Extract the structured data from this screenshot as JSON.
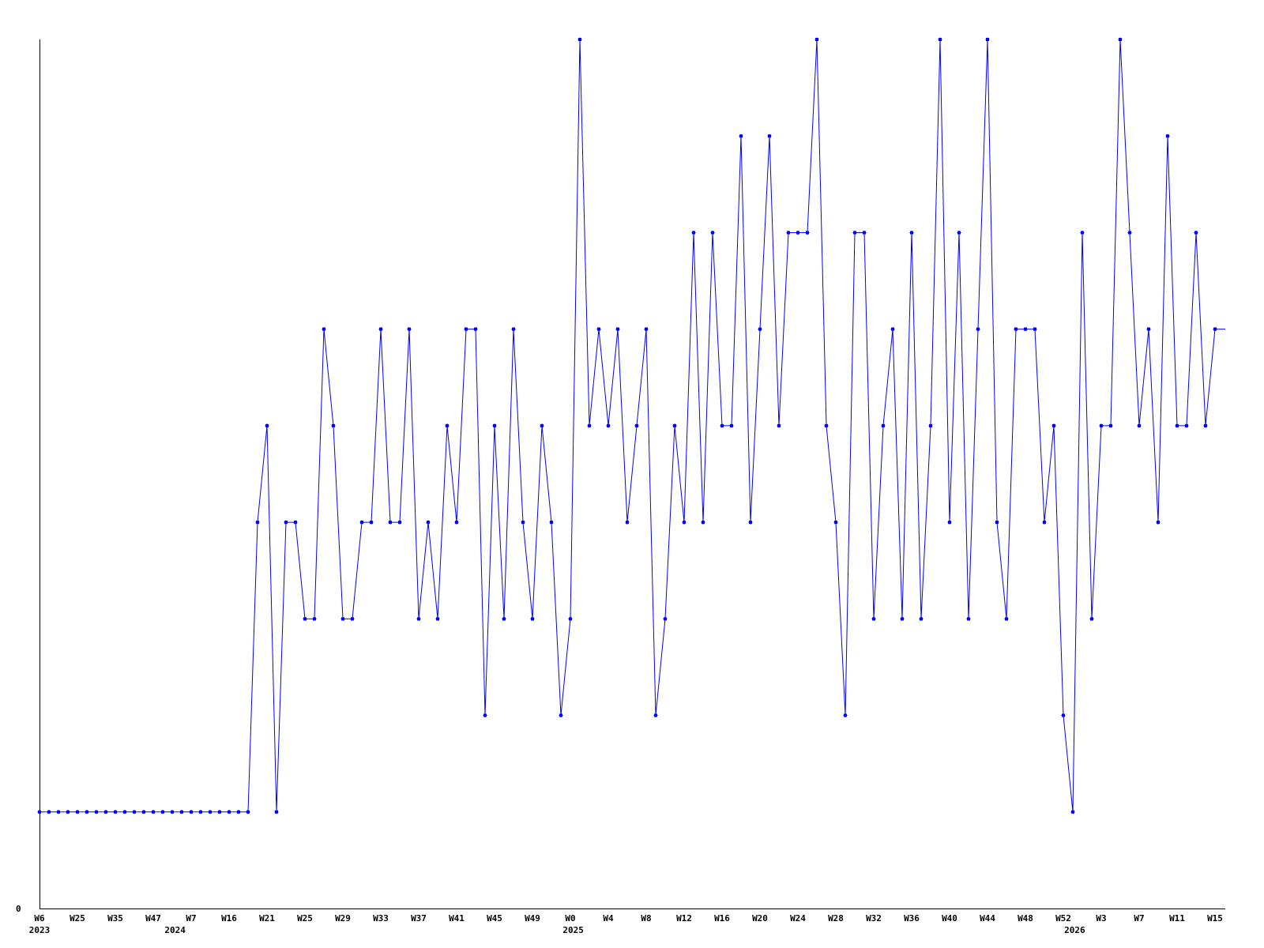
{
  "chart_data": {
    "type": "line",
    "title": "",
    "xlabel": "",
    "ylabel": "",
    "ylim": [
      0,
      9
    ],
    "y_tick_labels": [
      "0"
    ],
    "grid": false,
    "legend": "none",
    "series_color": "#0000ff",
    "axis_color": "#000000",
    "values": [
      1,
      1,
      1,
      1,
      1,
      1,
      1,
      1,
      1,
      1,
      1,
      1,
      1,
      1,
      1,
      1,
      1,
      1,
      1,
      1,
      1,
      1,
      1,
      4,
      5,
      1,
      4,
      4,
      3,
      3,
      6,
      5,
      3,
      3,
      4,
      4,
      6,
      4,
      4,
      6,
      3,
      4,
      3,
      5,
      4,
      6,
      6,
      2,
      5,
      3,
      6,
      4,
      3,
      5,
      4,
      2,
      3,
      9,
      5,
      6,
      5,
      6,
      4,
      5,
      6,
      2,
      3,
      5,
      4,
      7,
      4,
      7,
      5,
      5,
      8,
      4,
      6,
      8,
      5,
      7,
      7,
      7,
      9,
      5,
      4,
      2,
      7,
      7,
      3,
      5,
      6,
      3,
      7,
      3,
      5,
      9,
      4,
      7,
      3,
      6,
      9,
      4,
      3,
      6,
      6,
      6,
      4,
      5,
      2,
      1,
      7,
      3,
      5,
      5,
      9,
      7,
      5,
      6,
      4,
      8,
      5,
      5,
      7,
      5,
      6
    ],
    "trailing_value": 6,
    "x_ticks": [
      {
        "label": "W6",
        "year": "2023",
        "index": 0
      },
      {
        "label": "W25",
        "index": 4
      },
      {
        "label": "W35",
        "index": 8
      },
      {
        "label": "W47",
        "index": 12
      },
      {
        "label": "W7",
        "index": 16
      },
      {
        "label": "W16",
        "index": 20
      },
      {
        "label": "W21",
        "index": 24
      },
      {
        "label": "W25",
        "index": 28
      },
      {
        "label": "W29",
        "index": 32
      },
      {
        "label": "W33",
        "index": 36
      },
      {
        "label": "W37",
        "index": 40
      },
      {
        "label": "W41",
        "index": 44
      },
      {
        "label": "W45",
        "index": 48
      },
      {
        "label": "W49",
        "index": 52
      },
      {
        "label": "W0",
        "index": 56
      },
      {
        "label": "W4",
        "index": 60
      },
      {
        "label": "W8",
        "index": 64
      },
      {
        "label": "W12",
        "index": 68
      },
      {
        "label": "W16",
        "index": 72
      },
      {
        "label": "W20",
        "index": 76
      },
      {
        "label": "W24",
        "index": 80
      },
      {
        "label": "W28",
        "index": 84
      },
      {
        "label": "W32",
        "index": 88
      },
      {
        "label": "W36",
        "index": 92
      },
      {
        "label": "W40",
        "index": 96
      },
      {
        "label": "W44",
        "index": 100
      },
      {
        "label": "W48",
        "index": 104
      },
      {
        "label": "W52",
        "index": 108
      },
      {
        "label": "W3",
        "index": 112
      },
      {
        "label": "W7",
        "index": 116
      },
      {
        "label": "W11",
        "index": 120
      },
      {
        "label": "W15",
        "index": 124
      }
    ],
    "year_labels": [
      {
        "label": "2023",
        "index": 0
      },
      {
        "label": "2024",
        "index": 14.3
      },
      {
        "label": "2025",
        "index": 56.3
      },
      {
        "label": "2026",
        "index": 109.2
      }
    ]
  }
}
